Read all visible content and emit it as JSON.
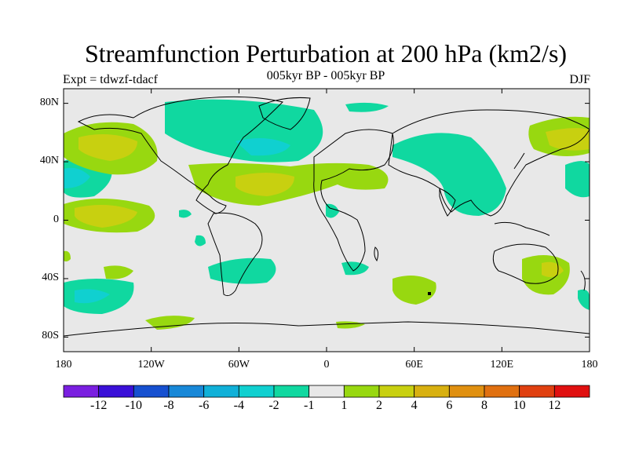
{
  "title": "Streamfunction Perturbation at 200 hPa (km2/s)",
  "left_label": "Expt = tdwzf-tdacf",
  "center_label": "005kyr BP - 005kyr BP",
  "right_label": "DJF",
  "y_ticks": [
    {
      "label": "80N",
      "lat": 80
    },
    {
      "label": "40N",
      "lat": 40
    },
    {
      "label": "0",
      "lat": 0
    },
    {
      "label": "40S",
      "lat": -40
    },
    {
      "label": "80S",
      "lat": -80
    }
  ],
  "x_ticks": [
    {
      "label": "180",
      "lon": -180
    },
    {
      "label": "120W",
      "lon": -120
    },
    {
      "label": "60W",
      "lon": -60
    },
    {
      "label": "0",
      "lon": 0
    },
    {
      "label": "60E",
      "lon": 60
    },
    {
      "label": "120E",
      "lon": 120
    },
    {
      "label": "180",
      "lon": 180
    }
  ],
  "colorbar": {
    "colors": [
      "#7a1fe0",
      "#3a10d8",
      "#1650d0",
      "#1888d8",
      "#10b0d8",
      "#10d0d0",
      "#10d8a0",
      "#e8e8e8",
      "#98d810",
      "#c8d010",
      "#d8b010",
      "#e09010",
      "#e07010",
      "#e04010",
      "#e01010"
    ],
    "labels": [
      "-12",
      "-10",
      "-8",
      "-6",
      "-4",
      "-2",
      "-1",
      "1",
      "2",
      "4",
      "6",
      "8",
      "10",
      "12"
    ]
  },
  "field_colors": {
    "background": "#e8e8e8",
    "neg1": "#10d8a0",
    "neg2": "#10d0d0",
    "pos1": "#98d810",
    "pos2": "#c8d010"
  }
}
